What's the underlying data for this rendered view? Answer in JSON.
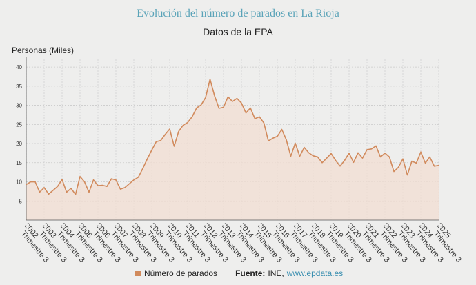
{
  "chart_data": {
    "type": "line",
    "title": "Evolución del número de parados en La Rioja",
    "subtitle": "Datos de la EPA",
    "ylabel": "Personas (Miles)",
    "ylim": [
      0,
      42
    ],
    "yticks": [
      5,
      10,
      15,
      20,
      25,
      30,
      35,
      40
    ],
    "grid": true,
    "legend_position": "bottom",
    "tick_labels": [
      {
        "year": "2002",
        "quarter": "Trimestre 3"
      },
      {
        "year": "2003",
        "quarter": "Trimestre 3"
      },
      {
        "year": "2004",
        "quarter": "Trimestre 3"
      },
      {
        "year": "2005",
        "quarter": "Trimestre 3"
      },
      {
        "year": "2006",
        "quarter": "Trimestre 3"
      },
      {
        "year": "2007",
        "quarter": "Trimestre 3"
      },
      {
        "year": "2008",
        "quarter": "Trimestre 3"
      },
      {
        "year": "2009",
        "quarter": "Trimestre 3"
      },
      {
        "year": "2010",
        "quarter": "Trimestre 3"
      },
      {
        "year": "2011",
        "quarter": "Trimestre 3"
      },
      {
        "year": "2012",
        "quarter": "Trimestre 3"
      },
      {
        "year": "2013",
        "quarter": "Trimestre 3"
      },
      {
        "year": "2014",
        "quarter": "Trimestre 3"
      },
      {
        "year": "2015",
        "quarter": "Trimestre 3"
      },
      {
        "year": "2016",
        "quarter": "Trimestre 3"
      },
      {
        "year": "2017",
        "quarter": "Trimestre 3"
      },
      {
        "year": "2018",
        "quarter": "Trimestre 3"
      },
      {
        "year": "2019",
        "quarter": "Trimestre 3"
      },
      {
        "year": "2020",
        "quarter": "Trimestre 3"
      },
      {
        "year": "2021",
        "quarter": "Trimestre 3"
      },
      {
        "year": "2022",
        "quarter": "Trimestre 3"
      },
      {
        "year": "2023",
        "quarter": "Trimestre 3"
      },
      {
        "year": "2024",
        "quarter": "Trimestre 3"
      },
      {
        "year": "2025",
        "quarter": "Trimestre 3"
      }
    ],
    "series": [
      {
        "name": "Número de parados",
        "color": "#d18a5c",
        "fill": "#f2ddd2",
        "values": [
          9.3,
          10.0,
          10.0,
          7.3,
          8.5,
          6.8,
          7.8,
          8.8,
          10.6,
          7.3,
          8.3,
          6.7,
          11.4,
          10.0,
          7.3,
          10.5,
          9.0,
          9.1,
          8.8,
          10.8,
          10.5,
          8.1,
          8.5,
          9.5,
          10.5,
          11.2,
          13.5,
          16.0,
          18.3,
          20.5,
          20.8,
          22.4,
          23.8,
          19.3,
          23.2,
          24.8,
          25.5,
          27.0,
          29.3,
          30.1,
          32.0,
          36.8,
          32.5,
          29.2,
          29.5,
          32.2,
          31.0,
          31.8,
          30.6,
          28.0,
          29.3,
          26.5,
          27.0,
          25.4,
          20.7,
          21.4,
          21.9,
          23.7,
          21.0,
          16.7,
          20.1,
          16.7,
          19.0,
          17.6,
          16.8,
          16.5,
          15.0,
          16.2,
          17.4,
          15.6,
          14.1,
          15.6,
          17.5,
          15.1,
          17.6,
          16.2,
          18.4,
          18.6,
          19.4,
          16.5,
          17.5,
          16.5,
          12.7,
          13.8,
          16.0,
          11.8,
          15.4,
          14.9,
          17.8,
          14.9,
          16.5,
          14.1,
          14.3
        ]
      }
    ]
  },
  "legend": {
    "series_label": "Número de parados",
    "source_label": "Fuente:",
    "source_text": "INE,",
    "source_url": "www.epdata.es"
  }
}
